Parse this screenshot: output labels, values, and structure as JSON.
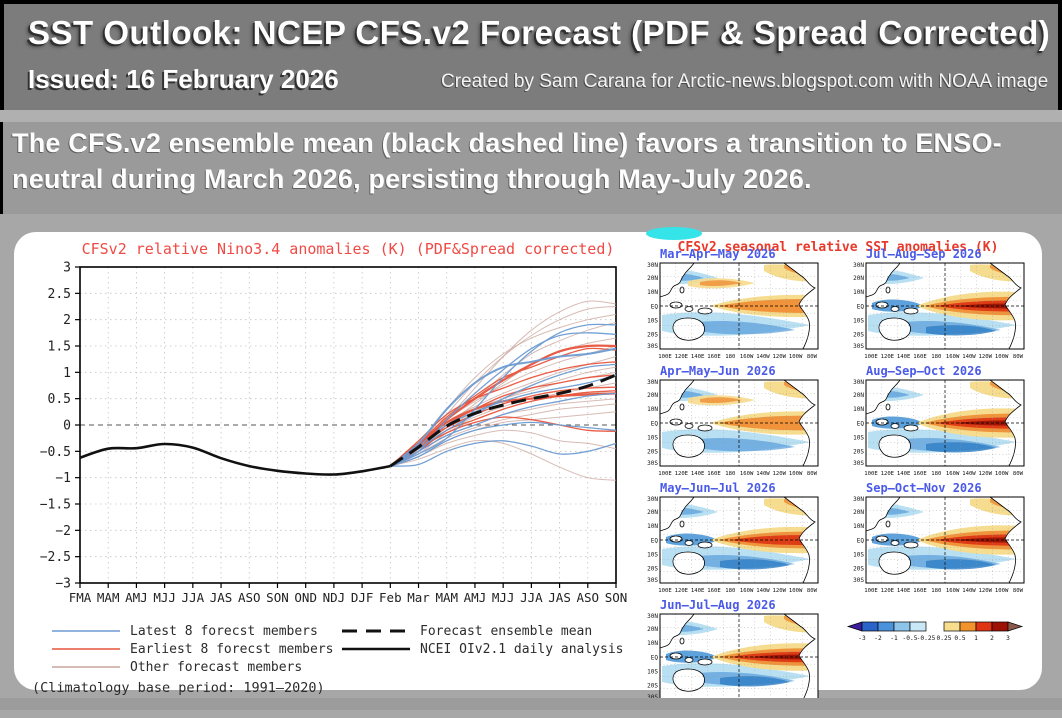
{
  "header": {
    "title": "SST Outlook: NCEP CFS.v2 Forecast (PDF & Spread Corrected)",
    "issued": "Issued: 16 February 2026",
    "credit": "Created by Sam Carana for Arctic-news.blogspot.com with NOAA image"
  },
  "summary": {
    "line1": "The CFS.v2 ensemble mean (black dashed line) favors a transition to ENSO-",
    "line2": "neutral during March 2026, persisting through May-July 2026."
  },
  "chart_data": {
    "type": "line",
    "title": "CFSv2 relative Nino3.4 anomalies (K) (PDF&Spread corrected)",
    "title_color": "#f04a45",
    "categories": [
      "FMA",
      "MAM",
      "AMJ",
      "MJJ",
      "JJA",
      "JAS",
      "ASO",
      "SON",
      "OND",
      "NDJ",
      "DJF",
      "Feb",
      "Mar",
      "MAM",
      "AMJ",
      "MJJ",
      "JJA",
      "JAS",
      "ASO",
      "SON"
    ],
    "ylim": [
      -3,
      3
    ],
    "ytick_step": 0.5,
    "grid": true,
    "zero_line": true,
    "forecast_start_index": 11,
    "analysis": {
      "name": "NCEI OIv2.1 daily analysis",
      "color": "#111111",
      "values": [
        -0.62,
        -0.45,
        -0.44,
        -0.36,
        -0.43,
        -0.63,
        -0.78,
        -0.87,
        -0.92,
        -0.94,
        -0.88,
        -0.78
      ]
    },
    "ensemble_mean": {
      "name": "Forecast ensemble mean",
      "color": "#111111",
      "values": [
        -0.78,
        -0.42,
        -0.02,
        0.22,
        0.38,
        0.5,
        0.6,
        0.74,
        0.95
      ]
    },
    "member_groups": [
      {
        "name": "Latest 8 forecst members",
        "color": "#6b9bd2",
        "members": [
          [
            -0.78,
            -0.55,
            -0.25,
            0.3,
            0.9,
            1.4,
            1.75,
            1.9,
            1.9
          ],
          [
            -0.78,
            -0.5,
            0.1,
            0.6,
            1.05,
            1.45,
            1.7,
            1.75,
            1.72
          ],
          [
            -0.78,
            -0.35,
            0.3,
            0.8,
            1.1,
            1.2,
            1.3,
            1.35,
            1.45
          ],
          [
            -0.78,
            -0.45,
            -0.1,
            0.2,
            0.5,
            0.75,
            0.95,
            1.1,
            1.15
          ],
          [
            -0.78,
            -0.4,
            0.0,
            0.25,
            0.45,
            0.6,
            0.7,
            0.8,
            0.95
          ],
          [
            -0.78,
            -0.5,
            -0.2,
            0.0,
            0.2,
            0.35,
            0.45,
            0.55,
            0.6
          ],
          [
            -0.78,
            -0.6,
            -0.3,
            -0.1,
            0.0,
            0.05,
            0.0,
            -0.05,
            -0.1
          ],
          [
            -0.78,
            -0.75,
            -0.5,
            -0.35,
            -0.3,
            -0.4,
            -0.55,
            -0.5,
            -0.35
          ]
        ]
      },
      {
        "name": "Earliest 8 forecst members",
        "color": "#e8543c",
        "members": [
          [
            -0.78,
            -0.4,
            0.1,
            0.5,
            0.85,
            1.15,
            1.4,
            1.5,
            1.5
          ],
          [
            -0.78,
            -0.35,
            0.15,
            0.55,
            0.9,
            1.1,
            1.3,
            1.45,
            1.42
          ],
          [
            -0.78,
            -0.3,
            0.2,
            0.5,
            0.7,
            0.9,
            1.05,
            1.15,
            1.2
          ],
          [
            -0.78,
            -0.45,
            0.0,
            0.3,
            0.55,
            0.7,
            0.8,
            0.9,
            0.95
          ],
          [
            -0.78,
            -0.4,
            -0.05,
            0.2,
            0.4,
            0.55,
            0.65,
            0.7,
            0.72
          ],
          [
            -0.78,
            -0.5,
            -0.1,
            0.1,
            0.3,
            0.45,
            0.55,
            0.62,
            0.65
          ],
          [
            -0.78,
            -0.35,
            0.05,
            0.3,
            0.45,
            0.5,
            0.55,
            0.58,
            0.6
          ],
          [
            -0.78,
            -0.45,
            -0.15,
            0.05,
            0.15,
            0.1,
            0.0,
            -0.1,
            -0.12
          ]
        ]
      },
      {
        "name": "Other forecast members",
        "color": "#c9a49c",
        "members": [
          [
            -0.78,
            -0.5,
            0.1,
            0.7,
            1.3,
            1.8,
            2.15,
            2.35,
            2.3
          ],
          [
            -0.78,
            -0.45,
            0.2,
            0.8,
            1.3,
            1.7,
            2.0,
            2.2,
            2.25
          ],
          [
            -0.78,
            -0.4,
            0.3,
            0.9,
            1.35,
            1.65,
            1.85,
            2.0,
            2.1
          ],
          [
            -0.78,
            -0.45,
            0.1,
            0.5,
            0.95,
            1.35,
            1.6,
            1.8,
            1.95
          ],
          [
            -0.78,
            -0.5,
            0.0,
            0.4,
            0.8,
            1.15,
            1.4,
            1.55,
            1.65
          ],
          [
            -0.78,
            -0.4,
            0.1,
            0.45,
            0.75,
            1.0,
            1.2,
            1.35,
            1.5
          ],
          [
            -0.78,
            -0.45,
            0.05,
            0.35,
            0.6,
            0.8,
            1.0,
            1.15,
            1.3
          ],
          [
            -0.78,
            -0.5,
            -0.05,
            0.25,
            0.5,
            0.7,
            0.85,
            1.0,
            1.1
          ],
          [
            -0.78,
            -0.4,
            0.0,
            0.3,
            0.5,
            0.65,
            0.8,
            0.9,
            1.0
          ],
          [
            -0.78,
            -0.5,
            -0.1,
            0.15,
            0.35,
            0.5,
            0.6,
            0.7,
            0.8
          ],
          [
            -0.78,
            -0.55,
            -0.15,
            0.1,
            0.3,
            0.45,
            0.55,
            0.6,
            0.65
          ],
          [
            -0.78,
            -0.5,
            -0.2,
            0.0,
            0.2,
            0.3,
            0.4,
            0.45,
            0.5
          ],
          [
            -0.78,
            -0.55,
            -0.25,
            -0.05,
            0.1,
            0.2,
            0.3,
            0.35,
            0.4
          ],
          [
            -0.78,
            -0.6,
            -0.3,
            -0.1,
            0.05,
            0.1,
            0.15,
            0.2,
            0.25
          ],
          [
            -0.78,
            -0.6,
            -0.35,
            -0.2,
            -0.1,
            -0.15,
            -0.3,
            -0.35,
            -0.45
          ],
          [
            -0.78,
            -0.65,
            -0.45,
            -0.3,
            -0.35,
            -0.55,
            -0.8,
            -1.0,
            -1.05
          ]
        ]
      }
    ],
    "legend_entries": [
      {
        "label": "Latest 8 forecst members",
        "style": "blue-solid"
      },
      {
        "label": "Earliest 8 forecst members",
        "style": "red-solid"
      },
      {
        "label": "Other forecast members",
        "style": "tan-solid"
      },
      {
        "label": "Forecast ensemble mean",
        "style": "black-dashed"
      },
      {
        "label": "NCEI OIv2.1 daily analysis",
        "style": "black-solid"
      }
    ],
    "climatology_note": "(Climatology base period: 1991–2020)"
  },
  "maps": {
    "section_title": "CFSv2 seasonal relative SST anomalies (K)",
    "lat_labels": [
      "30N",
      "20N",
      "10N",
      "EQ",
      "10S",
      "20S",
      "30S"
    ],
    "lon_labels": [
      "100E",
      "120E",
      "140E",
      "160E",
      "180",
      "160W",
      "140W",
      "120W",
      "100W",
      "80W"
    ],
    "panels": [
      {
        "title": "Mar–Apr–May 2026",
        "intensity": 0.4,
        "col": 0,
        "row": 0
      },
      {
        "title": "Jul–Aug–Sep 2026",
        "intensity": 0.95,
        "col": 1,
        "row": 0
      },
      {
        "title": "Apr–May–Jun 2026",
        "intensity": 0.5,
        "col": 0,
        "row": 1
      },
      {
        "title": "Aug–Sep–Oct 2026",
        "intensity": 1.0,
        "col": 1,
        "row": 1
      },
      {
        "title": "May–Jun–Jul 2026",
        "intensity": 0.75,
        "col": 0,
        "row": 2
      },
      {
        "title": "Sep–Oct–Nov 2026",
        "intensity": 1.0,
        "col": 1,
        "row": 2
      },
      {
        "title": "Jun–Jul–Aug 2026",
        "intensity": 0.85,
        "col": 0,
        "row": 3
      }
    ],
    "colorbar": {
      "tick_labels": [
        "-3",
        "-2",
        "-1",
        "-0.5",
        "-0.25",
        "0.25",
        "0.5",
        "1",
        "2",
        "3"
      ],
      "cool_colors": [
        "#2a63c9",
        "#4b92dc",
        "#8cc4ea",
        "#c9e8f5"
      ],
      "warm_colors": [
        "#f7dd8d",
        "#f2942d",
        "#e03515",
        "#9e1206"
      ],
      "arrow_left_color": "#3b1d9e",
      "arrow_right_color": "#8c5a4a"
    }
  },
  "colors": {
    "header_bg": "#7c7c7c",
    "summary_bg": "#9a9a9a",
    "page_bg": "#a7a7a7",
    "panel_bg": "#ffffff",
    "map_title_blue": "#4a5ae8",
    "maps_title_red": "#e8392b"
  }
}
